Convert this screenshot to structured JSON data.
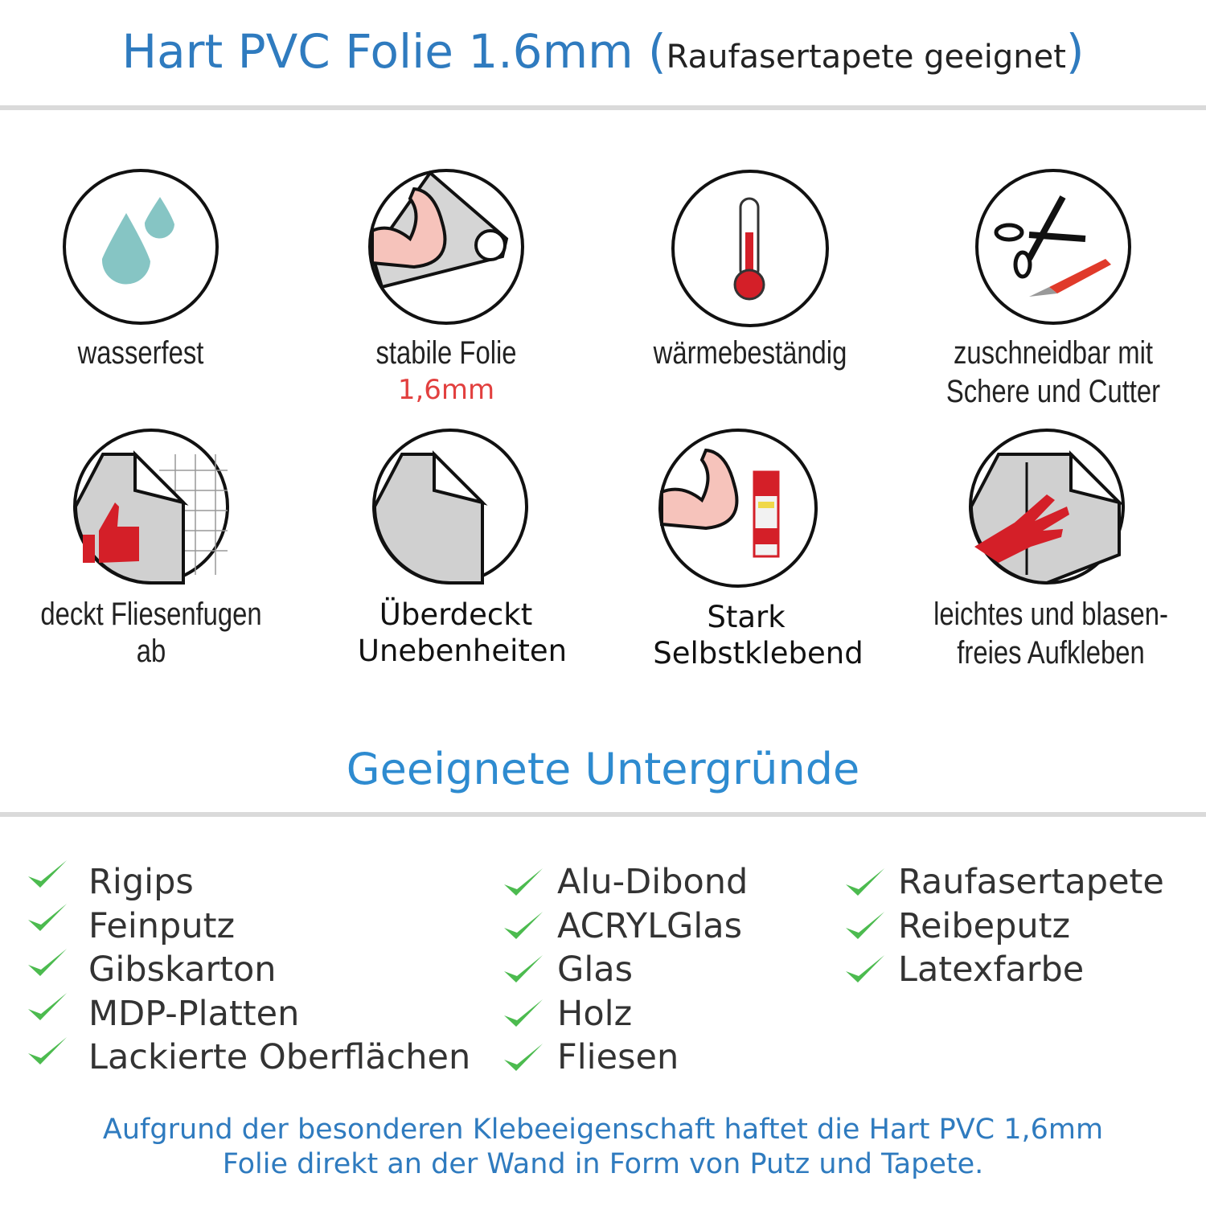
{
  "header": {
    "title": "Hart PVC Folie 1.6mm",
    "paren_open": "(",
    "subtitle": "Raufasertapete geeignet",
    "paren_close": ")"
  },
  "features": [
    {
      "icon": "water-drops-icon",
      "label": "wasserfest"
    },
    {
      "icon": "strong-arm-foil-icon",
      "label": "stabile Folie",
      "sublabel": "1,6mm"
    },
    {
      "icon": "thermometer-icon",
      "label": "wärmebeständig"
    },
    {
      "icon": "scissors-cutter-icon",
      "label": "zuschneidbar mit",
      "label2": "Schere und Cutter"
    },
    {
      "icon": "thumbs-up-tiles-icon",
      "label": "deckt Fliesenfugen ab"
    },
    {
      "icon": "foil-corner-icon",
      "label": "Überdeckt",
      "label2": "Unebenheiten"
    },
    {
      "icon": "strong-arm-glue-icon",
      "label": "Stark",
      "label2": "Selbstklebend"
    },
    {
      "icon": "hand-smoothing-icon",
      "label": "leichtes und blasen-",
      "label2": "freies Aufkleben"
    }
  ],
  "surfaces": {
    "title": "Geeignete Untergründe",
    "col1": [
      "Rigips",
      "Feinputz",
      "Gibskarton",
      "MDP-Platten",
      "Lackierte Oberflächen"
    ],
    "col2": [
      "Alu-Dibond",
      "ACRYLGlas",
      "Glas",
      "Holz",
      "Fliesen"
    ],
    "col3": [
      "Raufasertapete",
      "Reibeputz",
      "Latexfarbe"
    ]
  },
  "footer": {
    "line1": "Aufgrund der besonderen Klebeeigenschaft haftet die Hart PVC 1,6mm",
    "line2": "Folie direkt an der Wand in Form von Putz und Tapete."
  },
  "colors": {
    "blue": "#2f7bbf",
    "check": "#4cbb4f",
    "red": "#e2403f",
    "divider": "#dadada"
  }
}
